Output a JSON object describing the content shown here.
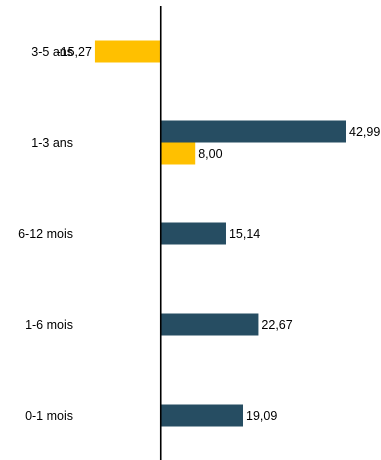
{
  "chart_data": {
    "type": "bar",
    "orientation": "horizontal",
    "categories": [
      "3-5 ans",
      "1-3 ans",
      "6-12 mois",
      "1-6 mois",
      "0-1 mois"
    ],
    "series": [
      {
        "color": "#264d62",
        "values": [
          null,
          42.99,
          15.14,
          22.67,
          19.09
        ],
        "labels": [
          "",
          "42,99",
          "15,14",
          "22,67",
          "19,09"
        ]
      },
      {
        "color": "#ffc000",
        "values": [
          -15.27,
          8.0,
          null,
          null,
          null
        ],
        "labels": [
          "-15,27",
          "8,00",
          "",
          "",
          ""
        ]
      }
    ],
    "xlim": [
      -37.3,
      42.99
    ],
    "grid": false,
    "legend": "none",
    "axis_color": "#000000"
  }
}
